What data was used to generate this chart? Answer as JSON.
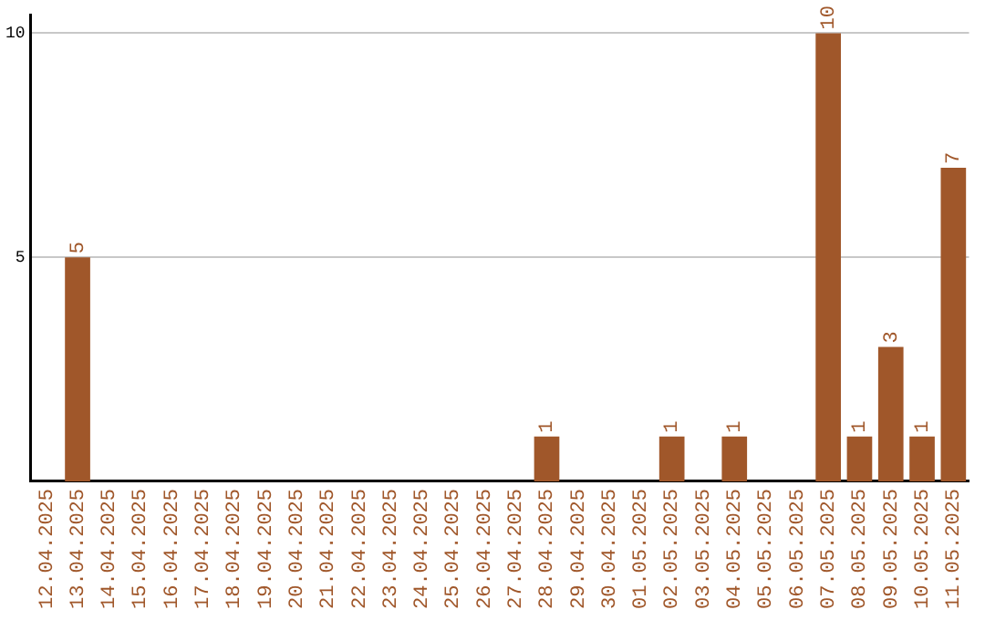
{
  "chart_data": {
    "type": "bar",
    "categories": [
      "12.04.2025",
      "13.04.2025",
      "14.04.2025",
      "15.04.2025",
      "16.04.2025",
      "17.04.2025",
      "18.04.2025",
      "19.04.2025",
      "20.04.2025",
      "21.04.2025",
      "22.04.2025",
      "23.04.2025",
      "24.04.2025",
      "25.04.2025",
      "26.04.2025",
      "27.04.2025",
      "28.04.2025",
      "29.04.2025",
      "30.04.2025",
      "01.05.2025",
      "02.05.2025",
      "03.05.2025",
      "04.05.2025",
      "05.05.2025",
      "06.05.2025",
      "07.05.2025",
      "08.05.2025",
      "09.05.2025",
      "10.05.2025",
      "11.05.2025"
    ],
    "values": [
      0,
      5,
      0,
      0,
      0,
      0,
      0,
      0,
      0,
      0,
      0,
      0,
      0,
      0,
      0,
      0,
      1,
      0,
      0,
      0,
      1,
      0,
      1,
      0,
      0,
      10,
      1,
      3,
      1,
      7
    ],
    "value_labels": [
      null,
      "5",
      null,
      null,
      null,
      null,
      null,
      null,
      null,
      null,
      null,
      null,
      null,
      null,
      null,
      null,
      "1",
      null,
      null,
      null,
      "1",
      null,
      "1",
      null,
      null,
      "10",
      "1",
      "3",
      "1",
      "7"
    ],
    "color": "#a0572a",
    "ylim": [
      0,
      10.4
    ],
    "yticks": [
      5,
      10
    ],
    "grid": "y",
    "legend": false
  }
}
